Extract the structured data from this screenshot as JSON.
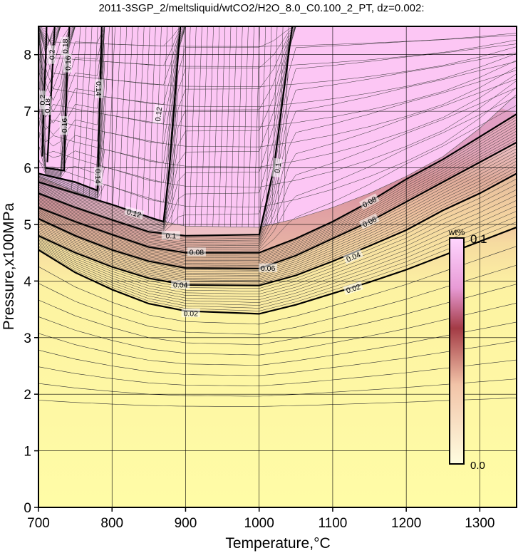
{
  "chart_data": {
    "type": "heatmap",
    "title": "2011-3SGP_2/meltsliquid/wtCO2/H2O_8.0_C0.100_2_PT, dz=0.002:",
    "xlabel": "Temperature,°C",
    "ylabel": "Pressure,x100MPa",
    "xlim": [
      700,
      1350
    ],
    "ylim": [
      0,
      8.5
    ],
    "x_ticks": [
      "700",
      "800",
      "900",
      "1000",
      "1100",
      "1200",
      "1300"
    ],
    "y_ticks": [
      "0",
      "1",
      "2",
      "3",
      "4",
      "5",
      "6",
      "7",
      "8"
    ],
    "grid": true,
    "colorbar": {
      "unit": "wt%",
      "min_label": "0.0",
      "max_label": "0.1",
      "min": 0.0,
      "max": 0.1,
      "placement": "right-inside"
    },
    "contour_interval": 0.002,
    "saturation_boundary": [
      {
        "t": 700,
        "p": 5.85
      },
      {
        "t": 750,
        "p": 5.58
      },
      {
        "t": 800,
        "p": 5.35
      },
      {
        "t": 850,
        "p": 5.1
      },
      {
        "t": 900,
        "p": 4.97
      },
      {
        "t": 1000,
        "p": 4.95
      },
      {
        "t": 1050,
        "p": 5.1
      },
      {
        "t": 1100,
        "p": 5.3
      },
      {
        "t": 1150,
        "p": 5.55
      },
      {
        "t": 1200,
        "p": 5.85
      },
      {
        "t": 1250,
        "p": 6.2
      },
      {
        "t": 1300,
        "p": 6.7
      },
      {
        "t": 1350,
        "p": 7.3
      }
    ],
    "major_contours": [
      {
        "value": "0.02",
        "points": [
          {
            "t": 700,
            "p": 4.55
          },
          {
            "t": 750,
            "p": 4.15
          },
          {
            "t": 800,
            "p": 3.85
          },
          {
            "t": 850,
            "p": 3.6
          },
          {
            "t": 900,
            "p": 3.47
          },
          {
            "t": 1000,
            "p": 3.42
          },
          {
            "t": 1050,
            "p": 3.58
          },
          {
            "t": 1100,
            "p": 3.78
          },
          {
            "t": 1150,
            "p": 3.98
          },
          {
            "t": 1200,
            "p": 4.2
          },
          {
            "t": 1250,
            "p": 4.45
          },
          {
            "t": 1300,
            "p": 4.7
          },
          {
            "t": 1350,
            "p": 4.95
          }
        ]
      },
      {
        "value": "0.04",
        "points": [
          {
            "t": 700,
            "p": 4.8
          },
          {
            "t": 750,
            "p": 4.5
          },
          {
            "t": 800,
            "p": 4.25
          },
          {
            "t": 850,
            "p": 4.05
          },
          {
            "t": 900,
            "p": 3.93
          },
          {
            "t": 1000,
            "p": 3.92
          },
          {
            "t": 1050,
            "p": 4.1
          },
          {
            "t": 1100,
            "p": 4.35
          },
          {
            "t": 1150,
            "p": 4.62
          },
          {
            "t": 1200,
            "p": 4.9
          },
          {
            "t": 1250,
            "p": 5.25
          },
          {
            "t": 1300,
            "p": 5.55
          },
          {
            "t": 1350,
            "p": 5.9
          }
        ]
      },
      {
        "value": "0.06",
        "points": [
          {
            "t": 700,
            "p": 5.1
          },
          {
            "t": 750,
            "p": 4.8
          },
          {
            "t": 800,
            "p": 4.55
          },
          {
            "t": 850,
            "p": 4.35
          },
          {
            "t": 900,
            "p": 4.23
          },
          {
            "t": 1000,
            "p": 4.22
          },
          {
            "t": 1050,
            "p": 4.45
          },
          {
            "t": 1100,
            "p": 4.75
          },
          {
            "t": 1150,
            "p": 5.05
          },
          {
            "t": 1200,
            "p": 5.4
          },
          {
            "t": 1250,
            "p": 5.75
          },
          {
            "t": 1300,
            "p": 6.1
          },
          {
            "t": 1350,
            "p": 6.45
          }
        ]
      },
      {
        "value": "0.08",
        "points": [
          {
            "t": 700,
            "p": 5.3
          },
          {
            "t": 750,
            "p": 5.05
          },
          {
            "t": 800,
            "p": 4.82
          },
          {
            "t": 850,
            "p": 4.6
          },
          {
            "t": 900,
            "p": 4.5
          },
          {
            "t": 1000,
            "p": 4.5
          },
          {
            "t": 1050,
            "p": 4.75
          },
          {
            "t": 1100,
            "p": 5.05
          },
          {
            "t": 1150,
            "p": 5.4
          },
          {
            "t": 1200,
            "p": 5.8
          },
          {
            "t": 1250,
            "p": 6.15
          },
          {
            "t": 1300,
            "p": 6.55
          },
          {
            "t": 1350,
            "p": 6.95
          }
        ]
      },
      {
        "value": "0.1",
        "points": [
          {
            "t": 700,
            "p": 5.55
          },
          {
            "t": 750,
            "p": 5.3
          },
          {
            "t": 800,
            "p": 5.08
          },
          {
            "t": 850,
            "p": 4.87
          },
          {
            "t": 900,
            "p": 4.8
          },
          {
            "t": 1000,
            "p": 4.82
          },
          {
            "t": 1010,
            "p": 5.4
          },
          {
            "t": 1020,
            "p": 6.0
          },
          {
            "t": 1030,
            "p": 7.0
          },
          {
            "t": 1040,
            "p": 8.0
          },
          {
            "t": 1045,
            "p": 8.5
          }
        ]
      },
      {
        "value": "0.12",
        "points": [
          {
            "t": 700,
            "p": 5.75
          },
          {
            "t": 750,
            "p": 5.55
          },
          {
            "t": 800,
            "p": 5.35
          },
          {
            "t": 850,
            "p": 5.13
          },
          {
            "t": 870,
            "p": 5.05
          },
          {
            "t": 878,
            "p": 6.0
          },
          {
            "t": 884,
            "p": 7.0
          },
          {
            "t": 890,
            "p": 8.0
          },
          {
            "t": 893,
            "p": 8.5
          }
        ]
      },
      {
        "value": "0.14",
        "points": [
          {
            "t": 700,
            "p": 5.9
          },
          {
            "t": 750,
            "p": 5.75
          },
          {
            "t": 780,
            "p": 5.6
          },
          {
            "t": 782,
            "p": 6.5
          },
          {
            "t": 784,
            "p": 7.5
          },
          {
            "t": 786,
            "p": 8.5
          }
        ]
      },
      {
        "value": "0.16",
        "points": [
          {
            "t": 710,
            "p": 6.0
          },
          {
            "t": 735,
            "p": 5.95
          },
          {
            "t": 737,
            "p": 7.0
          },
          {
            "t": 740,
            "p": 8.0
          },
          {
            "t": 742,
            "p": 8.5
          }
        ]
      },
      {
        "value": "0.18",
        "points": [
          {
            "t": 712,
            "p": 6.1
          },
          {
            "t": 716,
            "p": 7.0
          },
          {
            "t": 720,
            "p": 8.0
          },
          {
            "t": 722,
            "p": 8.5
          }
        ]
      },
      {
        "value": "0.2",
        "points": [
          {
            "t": 705,
            "p": 6.2
          },
          {
            "t": 707,
            "p": 7.0
          },
          {
            "t": 710,
            "p": 8.0
          },
          {
            "t": 711,
            "p": 8.5
          }
        ]
      }
    ],
    "contour_labels": [
      {
        "text": "0.02",
        "t": 907,
        "p": 3.43,
        "angle": 0
      },
      {
        "text": "0.02",
        "t": 1128,
        "p": 3.87,
        "angle": -18
      },
      {
        "text": "0.04",
        "t": 893,
        "p": 3.93,
        "angle": 0
      },
      {
        "text": "0.04",
        "t": 1128,
        "p": 4.43,
        "angle": -23
      },
      {
        "text": "0.06",
        "t": 1012,
        "p": 4.23,
        "angle": 0
      },
      {
        "text": "0.06",
        "t": 1150,
        "p": 5.05,
        "angle": -26
      },
      {
        "text": "0.08",
        "t": 915,
        "p": 4.51,
        "angle": 0
      },
      {
        "text": "0.08",
        "t": 1150,
        "p": 5.4,
        "angle": -28
      },
      {
        "text": "0.1",
        "t": 880,
        "p": 4.8,
        "angle": 0
      },
      {
        "text": "0.1",
        "t": 1025,
        "p": 6.0,
        "angle": -82
      },
      {
        "text": "0.12",
        "t": 830,
        "p": 5.2,
        "angle": 15
      },
      {
        "text": "0.12",
        "t": 863,
        "p": 6.95,
        "angle": -83
      },
      {
        "text": "0.14",
        "t": 781,
        "p": 5.85,
        "angle": 90
      },
      {
        "text": "0.14",
        "t": 782,
        "p": 7.4,
        "angle": 90
      },
      {
        "text": "0.16",
        "t": 735,
        "p": 6.75,
        "angle": -90
      },
      {
        "text": "0.16",
        "t": 740,
        "p": 7.85,
        "angle": -90
      },
      {
        "text": "0.18",
        "t": 712,
        "p": 7.1,
        "angle": -90
      },
      {
        "text": "0.18",
        "t": 736,
        "p": 8.15,
        "angle": -90
      },
      {
        "text": "0.2",
        "t": 705,
        "p": 7.2,
        "angle": -90
      },
      {
        "text": "0.2",
        "t": 718,
        "p": 8.0,
        "angle": -90
      }
    ]
  }
}
